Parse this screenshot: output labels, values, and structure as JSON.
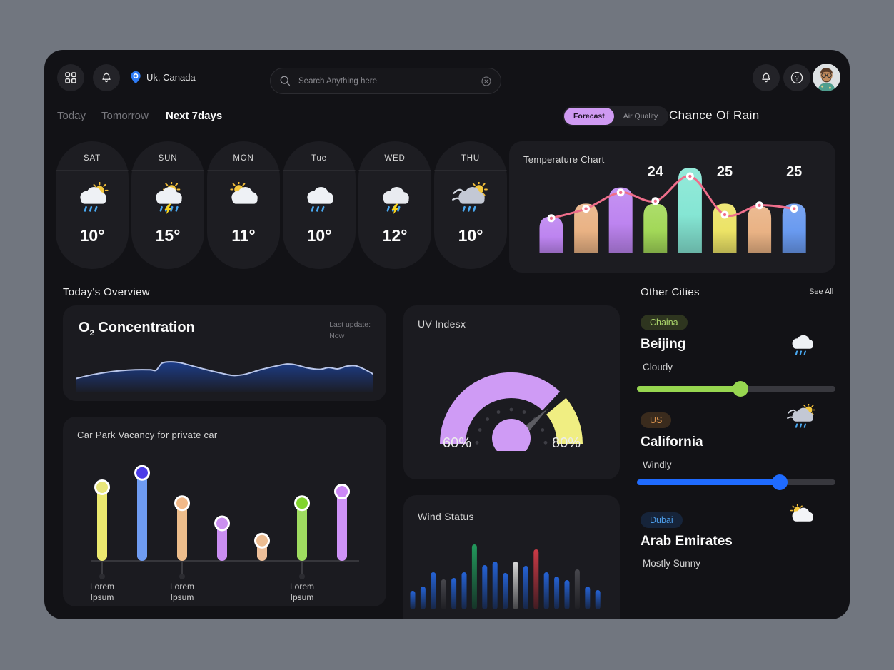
{
  "header": {
    "location": "Uk, Canada",
    "search": {
      "placeholder": "Search Anything here"
    }
  },
  "tabs": [
    {
      "label": "Today",
      "active": false
    },
    {
      "label": "Tomorrow",
      "active": false
    },
    {
      "label": "Next 7days",
      "active": true
    }
  ],
  "toggle": {
    "options": [
      {
        "label": "Forecast",
        "active": true
      },
      {
        "label": "Air Quality",
        "active": false
      }
    ]
  },
  "titles": {
    "chance_of_rain": "Chance Of Rain",
    "todays_overview": "Today's Overview",
    "other_cities": "Other Cities",
    "see_all": "See All"
  },
  "forecast_days": [
    {
      "day": "SAT",
      "temp": "10°",
      "icon": "rain-sun"
    },
    {
      "day": "SUN",
      "temp": "15°",
      "icon": "storm-sun"
    },
    {
      "day": "MON",
      "temp": "11°",
      "icon": "cloud-sun"
    },
    {
      "day": "Tue",
      "temp": "10°",
      "icon": "rain"
    },
    {
      "day": "WED",
      "temp": "12°",
      "icon": "thunder"
    },
    {
      "day": "THU",
      "temp": "10°",
      "icon": "wind-rain-sun"
    }
  ],
  "cards": {
    "temperature": {
      "title": "Temperature Chart"
    },
    "o2": {
      "title_main": "O",
      "title_sub": "2",
      "title_rest": " Concentration",
      "last_update_label": "Last update:",
      "last_update_value": "Now"
    },
    "uv": {
      "title": "UV Indesx",
      "low_label": "60%",
      "high_label": "80%"
    },
    "car_park": {
      "title": "Car Park Vacancy for private car"
    },
    "wind": {
      "title": "Wind Status"
    }
  },
  "other_cities": [
    {
      "badge": "Chaina",
      "badge_bg": "#2e351f",
      "badge_color": "#a9d36a",
      "city": "Beijing",
      "condition": "Cloudy",
      "icon": "rain",
      "accent": "#97d650",
      "slider_pct": 52,
      "has_slider": true
    },
    {
      "badge": "US",
      "badge_bg": "#3a2b1d",
      "badge_color": "#d9934f",
      "city": "California",
      "condition": "Windly",
      "icon": "wind-rain-sun",
      "accent": "#1f6bff",
      "slider_pct": 72,
      "has_slider": true
    },
    {
      "badge": "Dubai",
      "badge_bg": "#16243a",
      "badge_color": "#4d9de8",
      "city": "Arab Emirates",
      "condition": "Mostly Sunny",
      "icon": "sun-cloud",
      "accent": "#1f6bff",
      "slider_pct": 0,
      "has_slider": false
    }
  ],
  "chart_data": [
    {
      "name": "temperature_chart",
      "type": "bar+line",
      "title": "Temperature Chart",
      "bars": [
        {
          "color": "#bd84f0",
          "height_pct": 43
        },
        {
          "color": "#e9b284",
          "height_pct": 58
        },
        {
          "color": "#bd84f0",
          "height_pct": 77
        },
        {
          "color": "#a2d858",
          "height_pct": 58,
          "value": 24
        },
        {
          "color": "#85e6d4",
          "height_pct": 100
        },
        {
          "color": "#ece366",
          "height_pct": 58,
          "value": 25
        },
        {
          "color": "#e9b284",
          "height_pct": 55
        },
        {
          "color": "#699af0",
          "height_pct": 58,
          "value": 25
        }
      ],
      "line_dots_pct": [
        41,
        52,
        71,
        61,
        90,
        45,
        56,
        52
      ],
      "line_color": "#ef6e8b"
    },
    {
      "name": "o2_concentration",
      "type": "area",
      "stroke": "#b9c6ea",
      "fill": "#1d3f8f",
      "points_pct": [
        [
          0,
          28
        ],
        [
          5,
          36
        ],
        [
          10,
          42
        ],
        [
          15,
          46
        ],
        [
          20,
          48
        ],
        [
          25,
          48
        ],
        [
          27,
          47
        ],
        [
          29,
          63
        ],
        [
          32,
          66
        ],
        [
          35,
          64
        ],
        [
          39,
          57
        ],
        [
          44,
          48
        ],
        [
          49,
          40
        ],
        [
          53,
          35
        ],
        [
          57,
          38
        ],
        [
          62,
          48
        ],
        [
          67,
          56
        ],
        [
          71,
          61
        ],
        [
          74,
          59
        ],
        [
          78,
          52
        ],
        [
          82,
          49
        ],
        [
          85,
          53
        ],
        [
          88,
          50
        ],
        [
          91,
          56
        ],
        [
          94,
          57
        ],
        [
          97,
          49
        ],
        [
          100,
          38
        ]
      ]
    },
    {
      "name": "uv_index",
      "type": "gauge",
      "segments": [
        {
          "color": "#cf9bf5",
          "start_deg": 180,
          "end_deg": 47
        },
        {
          "color": "#f0ee82",
          "start_deg": 40,
          "end_deg": 0
        }
      ],
      "needle_deg": 44,
      "needle_color": "#5c5c62",
      "center_color": "#cf9bf5",
      "labels": [
        "60%",
        "80%"
      ]
    },
    {
      "name": "car_park_vacancy",
      "type": "lollipop",
      "values_pct": [
        51,
        61,
        40,
        26,
        14,
        40,
        48
      ],
      "stick_colors": [
        "#ece96f",
        "#6f9cf2",
        "#edbd8b",
        "#ca8ef2",
        "#eec09a",
        "#9fdc60",
        "#cf93f7"
      ],
      "knob_colors": [
        "#e9e67a",
        "#4b3be8",
        "#f2b988",
        "#cb90f0",
        "#edbd92",
        "#82d42e",
        "#cc87f5"
      ],
      "x_labels": [
        {
          "index": 0,
          "text_line1": "Lorem",
          "text_line2": "Ipsum"
        },
        {
          "index": 2,
          "text_line1": "Lorem",
          "text_line2": "Ipsum"
        },
        {
          "index": 5,
          "text_line1": "Lorem",
          "text_line2": "Ipsum"
        }
      ]
    },
    {
      "name": "wind_status",
      "type": "bar",
      "values": [
        12,
        18,
        38,
        28,
        30,
        38,
        77,
        48,
        53,
        37,
        53,
        47,
        70,
        38,
        32,
        27,
        42,
        18,
        13
      ],
      "colors": [
        "blue",
        "blue",
        "blue",
        "gray",
        "blue",
        "blue",
        "green",
        "blue",
        "blue",
        "blue",
        "white",
        "blue",
        "red",
        "blue",
        "blue",
        "blue",
        "gray",
        "blue",
        "blue"
      ],
      "palette": {
        "blue": "#2563d6",
        "green": "#22995c",
        "white": "#d9d9d9",
        "red": "#cc3a46",
        "gray": "#47474d"
      }
    }
  ]
}
